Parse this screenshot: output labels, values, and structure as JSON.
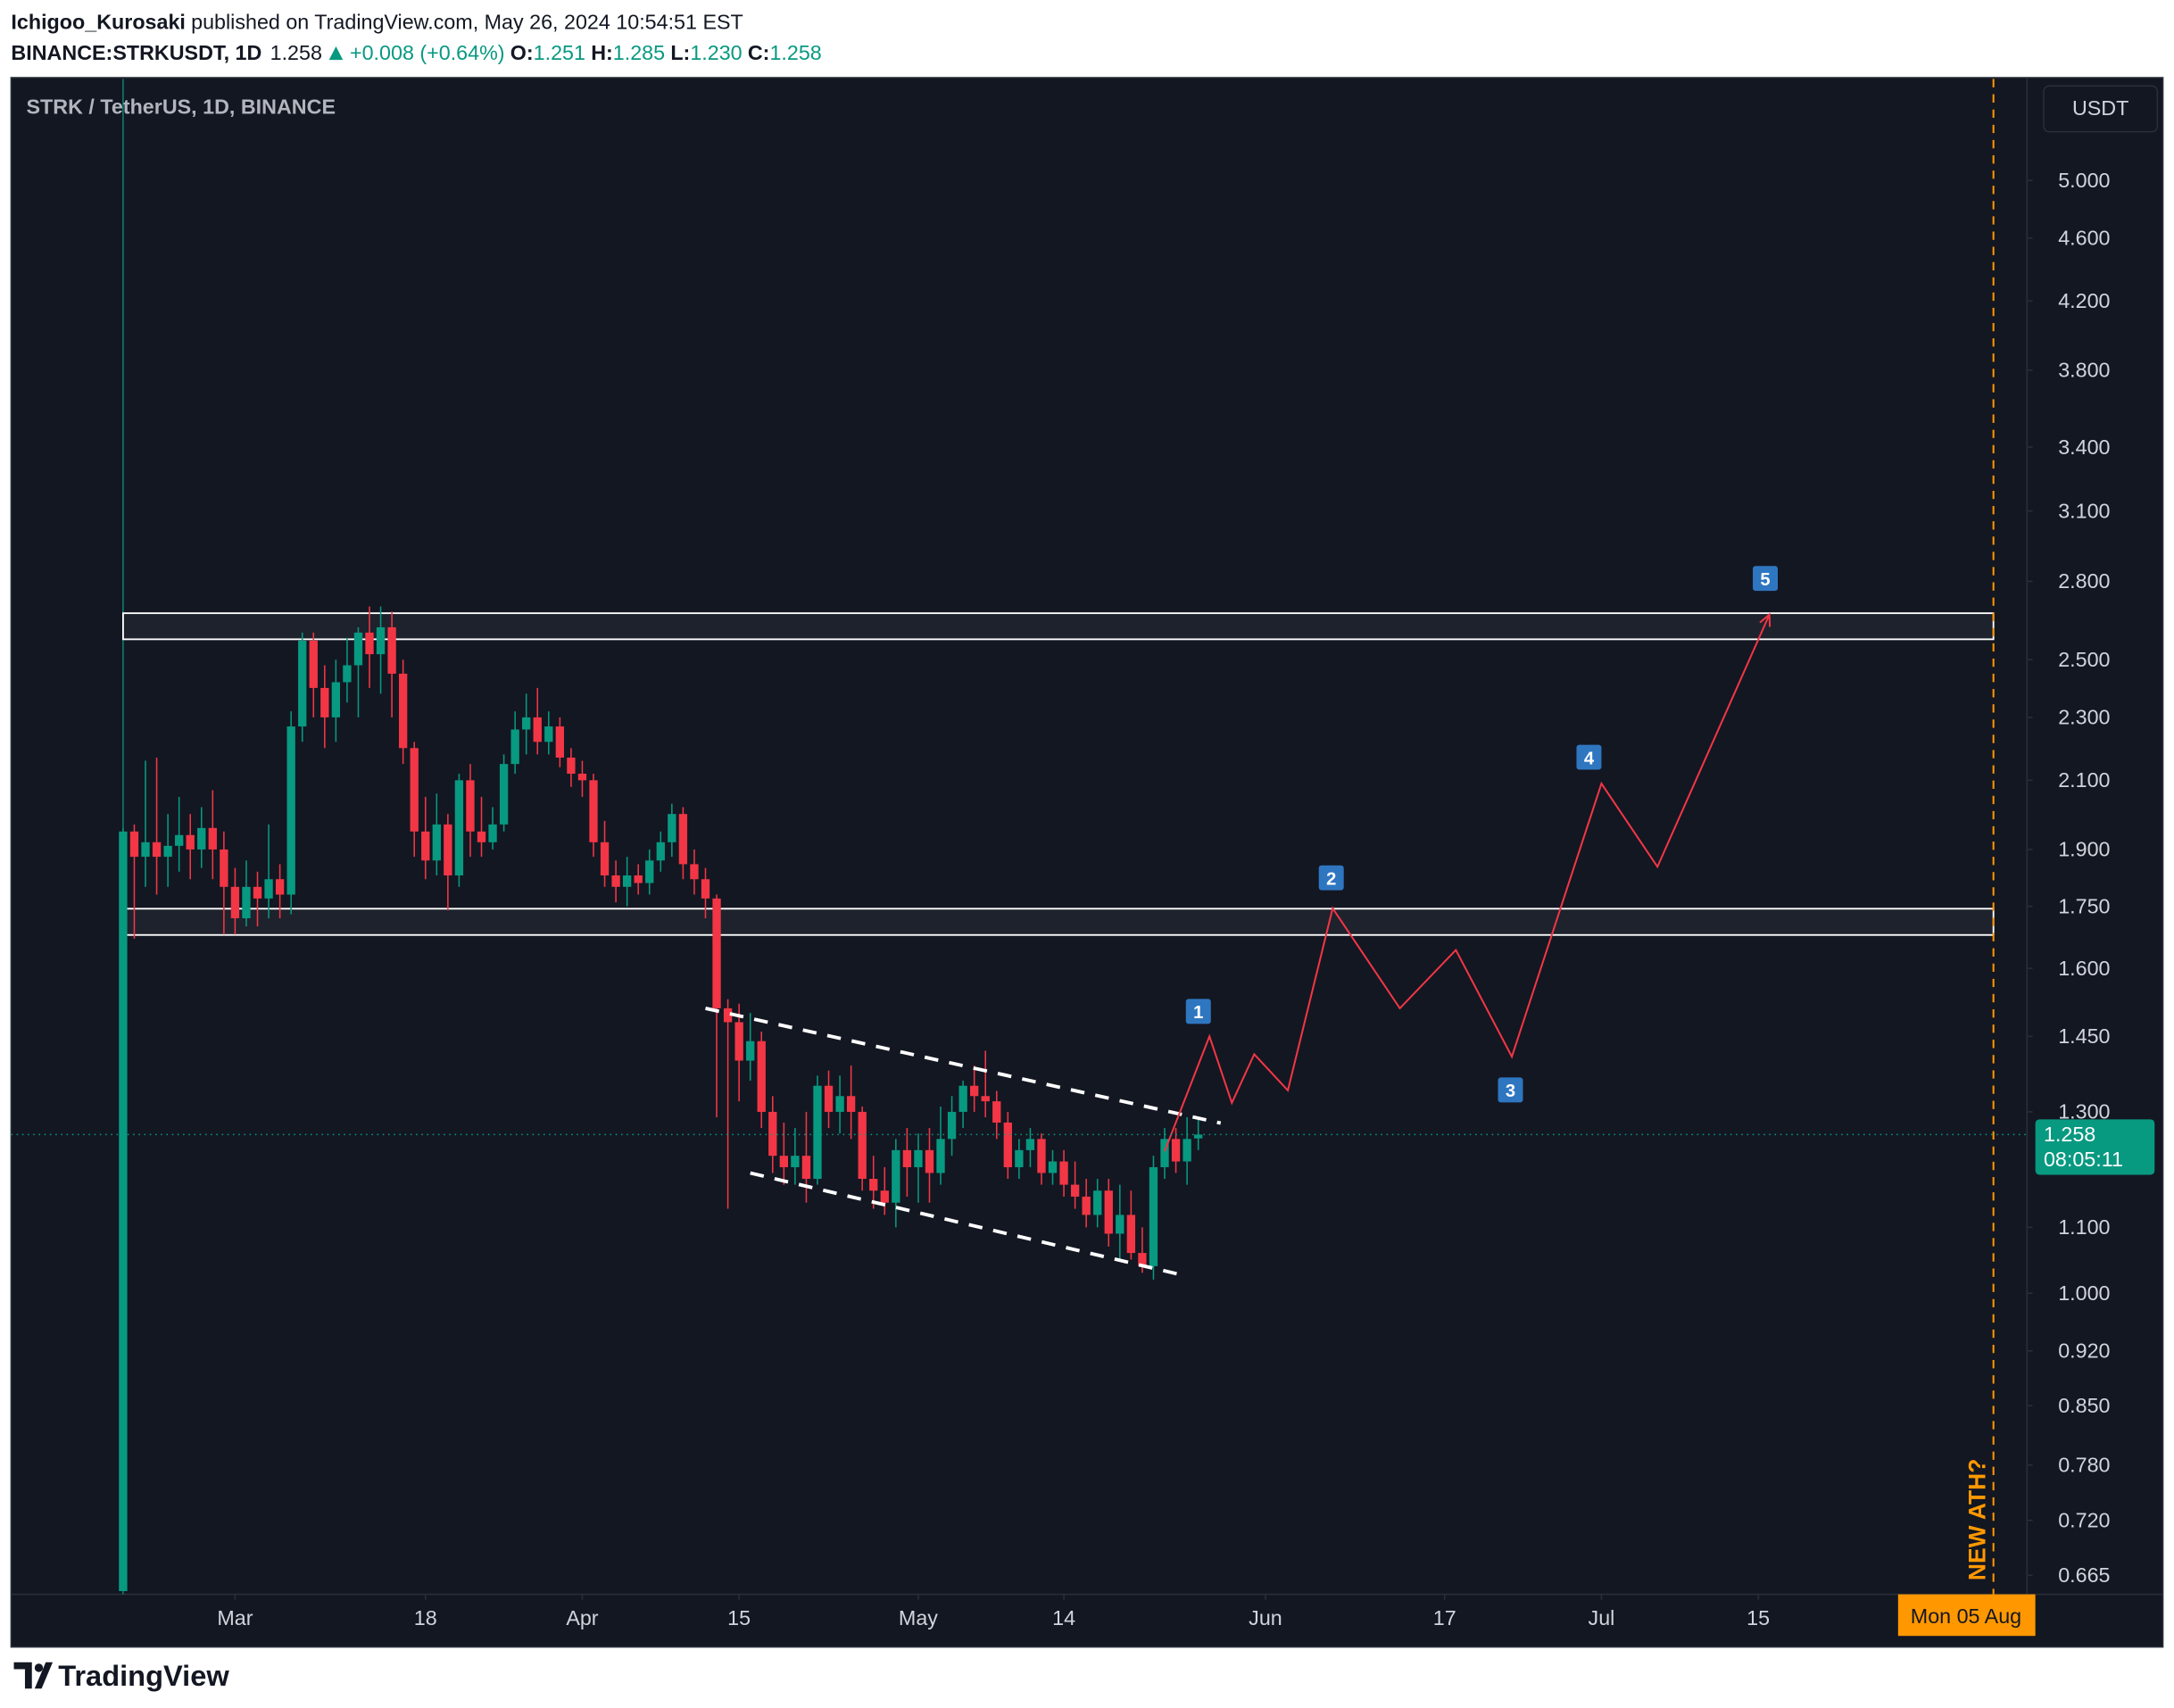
{
  "header": {
    "author": "Ichigoo_Kurosaki",
    "published": "published on TradingView.com, May 26, 2024 10:54:51 EST",
    "symbol": "BINANCE:STRKUSDT, 1D",
    "price": "1.258",
    "change": "+0.008 (+0.64%)",
    "ohlc": [
      {
        "label": "O:",
        "value": "1.251"
      },
      {
        "label": "H:",
        "value": "1.285"
      },
      {
        "label": "L:",
        "value": "1.230"
      },
      {
        "label": "C:",
        "value": "1.258"
      }
    ]
  },
  "footer": {
    "brand": "TradingView"
  },
  "chart_data": {
    "type": "candlestick",
    "title": "STRK / TetherUS, 1D, BINANCE",
    "currency": "USDT",
    "countdown": "08:05:11",
    "up_color": "#089981",
    "down_color": "#f23645",
    "log_scale": true,
    "grid": false,
    "x": [
      "2024-02-20",
      "2024-02-21",
      "2024-02-22",
      "2024-02-23",
      "2024-02-24",
      "2024-02-25",
      "2024-02-26",
      "2024-02-27",
      "2024-02-28",
      "2024-02-29",
      "2024-03-01",
      "2024-03-02",
      "2024-03-03",
      "2024-03-04",
      "2024-03-05",
      "2024-03-06",
      "2024-03-07",
      "2024-03-08",
      "2024-03-09",
      "2024-03-10",
      "2024-03-11",
      "2024-03-12",
      "2024-03-13",
      "2024-03-14",
      "2024-03-15",
      "2024-03-16",
      "2024-03-17",
      "2024-03-18",
      "2024-03-19",
      "2024-03-20",
      "2024-03-21",
      "2024-03-22",
      "2024-03-23",
      "2024-03-24",
      "2024-03-25",
      "2024-03-26",
      "2024-03-27",
      "2024-03-28",
      "2024-03-29",
      "2024-03-30",
      "2024-03-31",
      "2024-04-01",
      "2024-04-02",
      "2024-04-03",
      "2024-04-04",
      "2024-04-05",
      "2024-04-06",
      "2024-04-07",
      "2024-04-08",
      "2024-04-09",
      "2024-04-10",
      "2024-04-11",
      "2024-04-12",
      "2024-04-13",
      "2024-04-14",
      "2024-04-15",
      "2024-04-16",
      "2024-04-17",
      "2024-04-18",
      "2024-04-19",
      "2024-04-20",
      "2024-04-21",
      "2024-04-22",
      "2024-04-23",
      "2024-04-24",
      "2024-04-25",
      "2024-04-26",
      "2024-04-27",
      "2024-04-28",
      "2024-04-29",
      "2024-04-30",
      "2024-05-01",
      "2024-05-02",
      "2024-05-03",
      "2024-05-04",
      "2024-05-05",
      "2024-05-06",
      "2024-05-07",
      "2024-05-08",
      "2024-05-09",
      "2024-05-10",
      "2024-05-11",
      "2024-05-12",
      "2024-05-13",
      "2024-05-14",
      "2024-05-15",
      "2024-05-16",
      "2024-05-17",
      "2024-05-18",
      "2024-05-19",
      "2024-05-20",
      "2024-05-21",
      "2024-05-22",
      "2024-05-23",
      "2024-05-24",
      "2024-05-25",
      "2024-05-26"
    ],
    "open": [
      0.65,
      1.95,
      1.88,
      1.92,
      1.88,
      1.91,
      1.94,
      1.9,
      1.96,
      1.9,
      1.8,
      1.72,
      1.8,
      1.77,
      1.82,
      1.78,
      2.27,
      2.57,
      2.4,
      2.3,
      2.42,
      2.48,
      2.6,
      2.52,
      2.62,
      2.45,
      2.2,
      1.95,
      1.87,
      1.97,
      1.83,
      2.1,
      1.95,
      1.92,
      1.97,
      2.15,
      2.26,
      2.3,
      2.22,
      2.27,
      2.17,
      2.12,
      2.1,
      1.92,
      1.83,
      1.8,
      1.83,
      1.81,
      1.87,
      1.92,
      2.0,
      1.86,
      1.82,
      1.77,
      1.51,
      1.48,
      1.4,
      1.44,
      1.3,
      1.22,
      1.2,
      1.22,
      1.18,
      1.35,
      1.3,
      1.33,
      1.3,
      1.18,
      1.16,
      1.14,
      1.23,
      1.2,
      1.23,
      1.19,
      1.25,
      1.3,
      1.35,
      1.33,
      1.32,
      1.28,
      1.2,
      1.23,
      1.25,
      1.19,
      1.21,
      1.17,
      1.15,
      1.12,
      1.16,
      1.09,
      1.12,
      1.06,
      1.04,
      1.2,
      1.25,
      1.21,
      1.251
    ],
    "high": [
      1.96,
      1.97,
      2.16,
      2.17,
      2.0,
      2.05,
      2.0,
      2.02,
      2.07,
      1.95,
      1.85,
      1.87,
      1.84,
      1.97,
      1.86,
      2.32,
      2.6,
      2.6,
      2.48,
      2.5,
      2.58,
      2.62,
      2.7,
      2.7,
      2.68,
      2.5,
      2.22,
      2.05,
      2.06,
      2.0,
      2.12,
      2.15,
      2.05,
      2.02,
      2.18,
      2.32,
      2.38,
      2.4,
      2.32,
      2.3,
      2.2,
      2.16,
      2.12,
      1.98,
      1.87,
      1.88,
      1.86,
      1.9,
      1.95,
      2.03,
      2.02,
      1.9,
      1.85,
      1.78,
      1.53,
      1.52,
      1.5,
      1.46,
      1.33,
      1.28,
      1.27,
      1.3,
      1.37,
      1.38,
      1.37,
      1.39,
      1.31,
      1.22,
      1.2,
      1.25,
      1.27,
      1.26,
      1.27,
      1.31,
      1.33,
      1.36,
      1.39,
      1.42,
      1.34,
      1.3,
      1.25,
      1.27,
      1.26,
      1.23,
      1.23,
      1.21,
      1.18,
      1.18,
      1.18,
      1.17,
      1.16,
      1.1,
      1.22,
      1.27,
      1.27,
      1.29,
      1.285
    ],
    "low": [
      0.65,
      1.67,
      1.8,
      1.78,
      1.8,
      1.84,
      1.82,
      1.85,
      1.82,
      1.68,
      1.68,
      1.7,
      1.7,
      1.72,
      1.72,
      1.73,
      2.22,
      2.3,
      2.2,
      2.22,
      2.35,
      2.3,
      2.4,
      2.38,
      2.3,
      2.15,
      1.88,
      1.82,
      1.83,
      1.74,
      1.8,
      1.88,
      1.88,
      1.9,
      1.95,
      2.12,
      2.18,
      2.18,
      2.18,
      2.14,
      2.08,
      2.05,
      1.88,
      1.8,
      1.76,
      1.75,
      1.78,
      1.78,
      1.84,
      1.88,
      1.82,
      1.78,
      1.72,
      1.29,
      1.13,
      1.32,
      1.36,
      1.27,
      1.19,
      1.17,
      1.17,
      1.14,
      1.17,
      1.27,
      1.26,
      1.25,
      1.16,
      1.13,
      1.12,
      1.1,
      1.15,
      1.14,
      1.14,
      1.17,
      1.22,
      1.27,
      1.3,
      1.29,
      1.25,
      1.18,
      1.18,
      1.2,
      1.17,
      1.17,
      1.15,
      1.13,
      1.1,
      1.1,
      1.07,
      1.05,
      1.05,
      1.03,
      1.02,
      1.18,
      1.19,
      1.17,
      1.23
    ],
    "close": [
      1.95,
      1.88,
      1.92,
      1.88,
      1.91,
      1.94,
      1.9,
      1.96,
      1.9,
      1.8,
      1.72,
      1.8,
      1.77,
      1.82,
      1.78,
      2.27,
      2.57,
      2.4,
      2.3,
      2.42,
      2.48,
      2.6,
      2.52,
      2.62,
      2.45,
      2.2,
      1.95,
      1.87,
      1.97,
      1.83,
      2.1,
      1.95,
      1.92,
      1.97,
      2.15,
      2.26,
      2.3,
      2.22,
      2.27,
      2.17,
      2.12,
      2.1,
      1.92,
      1.83,
      1.8,
      1.83,
      1.81,
      1.87,
      1.92,
      2.0,
      1.86,
      1.82,
      1.77,
      1.51,
      1.48,
      1.4,
      1.44,
      1.3,
      1.22,
      1.2,
      1.22,
      1.18,
      1.35,
      1.3,
      1.33,
      1.3,
      1.18,
      1.16,
      1.14,
      1.23,
      1.2,
      1.23,
      1.19,
      1.25,
      1.3,
      1.35,
      1.33,
      1.32,
      1.28,
      1.2,
      1.23,
      1.25,
      1.19,
      1.21,
      1.17,
      1.15,
      1.12,
      1.16,
      1.09,
      1.12,
      1.06,
      1.04,
      1.2,
      1.25,
      1.21,
      1.25,
      1.258
    ],
    "xlim": [
      "2024-02-10",
      "2024-08-08"
    ],
    "xticks": [
      {
        "value": "2024-03-01",
        "label": "Mar"
      },
      {
        "value": "2024-03-18",
        "label": "18"
      },
      {
        "value": "2024-04-01",
        "label": "Apr"
      },
      {
        "value": "2024-04-15",
        "label": "15"
      },
      {
        "value": "2024-05-01",
        "label": "May"
      },
      {
        "value": "2024-05-14",
        "label": "14"
      },
      {
        "value": "2024-06-01",
        "label": "Jun"
      },
      {
        "value": "2024-06-17",
        "label": "17"
      },
      {
        "value": "2024-07-01",
        "label": "Jul"
      },
      {
        "value": "2024-07-15",
        "label": "15"
      }
    ],
    "ylim": [
      0.647,
      5.79
    ],
    "yticks": [
      {
        "value": 5,
        "label": "5.000"
      },
      {
        "value": 4.6,
        "label": "4.600"
      },
      {
        "value": 4.2,
        "label": "4.200"
      },
      {
        "value": 3.8,
        "label": "3.800"
      },
      {
        "value": 3.4,
        "label": "3.400"
      },
      {
        "value": 3.1,
        "label": "3.100"
      },
      {
        "value": 2.8,
        "label": "2.800"
      },
      {
        "value": 2.5,
        "label": "2.500"
      },
      {
        "value": 2.3,
        "label": "2.300"
      },
      {
        "value": 2.1,
        "label": "2.100"
      },
      {
        "value": 1.9,
        "label": "1.900"
      },
      {
        "value": 1.75,
        "label": "1.750"
      },
      {
        "value": 1.6,
        "label": "1.600"
      },
      {
        "value": 1.45,
        "label": "1.450"
      },
      {
        "value": 1.3,
        "label": "1.300"
      },
      {
        "value": 1.1,
        "label": "1.100"
      },
      {
        "value": 1,
        "label": "1.000"
      },
      {
        "value": 0.92,
        "label": "0.920"
      },
      {
        "value": 0.85,
        "label": "0.850"
      },
      {
        "value": 0.78,
        "label": "0.780"
      },
      {
        "value": 0.72,
        "label": "0.720"
      },
      {
        "value": 0.665,
        "label": "0.665"
      }
    ],
    "zones": [
      {
        "x": [
          "2024-02-20",
          "2024-08-05"
        ],
        "y": [
          2.575,
          2.674
        ]
      },
      {
        "x": [
          "2024-02-20",
          "2024-08-05"
        ],
        "y": [
          1.679,
          1.744
        ]
      }
    ],
    "channel": [
      {
        "x": [
          "2024-04-12",
          "2024-05-28"
        ],
        "y": [
          1.51,
          1.279
        ]
      },
      {
        "x": [
          "2024-04-16",
          "2024-05-25"
        ],
        "y": [
          1.19,
          1.025
        ]
      }
    ],
    "projection": {
      "color": "#f23645",
      "x": [
        "2024-05-23",
        "2024-05-27",
        "2024-05-29",
        "2024-05-31",
        "2024-06-03",
        "2024-06-07",
        "2024-06-13",
        "2024-06-18",
        "2024-06-23",
        "2024-07-01",
        "2024-07-06",
        "2024-07-16"
      ],
      "y": [
        1.228,
        1.45,
        1.317,
        1.413,
        1.341,
        1.745,
        1.51,
        1.643,
        1.408,
        2.09,
        1.853,
        2.669
      ]
    },
    "waves": [
      "1",
      "2",
      "3",
      "4",
      "5"
    ],
    "marker": {
      "x": "2024-08-05",
      "label": "Mon 05 Aug",
      "note": "NEW ATH?",
      "color": "#ff9800"
    }
  }
}
